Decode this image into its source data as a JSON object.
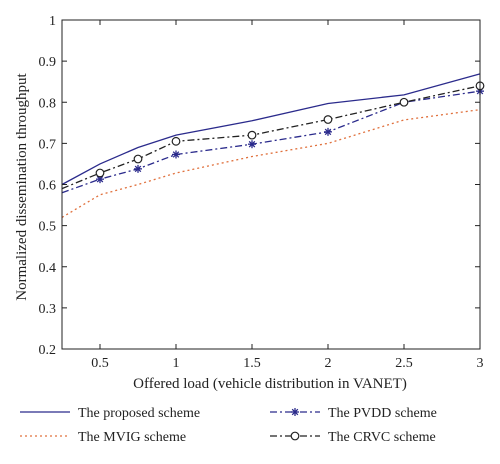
{
  "chart_data": {
    "type": "line",
    "title": "",
    "xlabel": "Offered load (vehicle distribution in VANET)",
    "ylabel": "Normalized dissemination throughput",
    "xlim": [
      0.25,
      3
    ],
    "ylim": [
      0.2,
      1
    ],
    "x_ticks": [
      "0.5",
      "1",
      "1.5",
      "2",
      "2.5",
      "3"
    ],
    "x_tick_values": [
      0.5,
      1,
      1.5,
      2,
      2.5,
      3
    ],
    "y_ticks": [
      "0.2",
      "0.3",
      "0.4",
      "0.5",
      "0.6",
      "0.7",
      "0.8",
      "0.9",
      "1"
    ],
    "y_tick_values": [
      0.2,
      0.3,
      0.4,
      0.5,
      0.6,
      0.7,
      0.8,
      0.9,
      1.0
    ],
    "grid": false,
    "legend_placement": "bottom",
    "series": [
      {
        "name": "The proposed scheme",
        "color": "#2b2b8c",
        "dash": "solid",
        "marker": "none",
        "x": [
          0.25,
          0.5,
          0.75,
          1,
          1.5,
          2,
          2.5,
          3
        ],
        "y": [
          0.6,
          0.65,
          0.69,
          0.72,
          0.755,
          0.797,
          0.818,
          0.869
        ],
        "marker_x": []
      },
      {
        "name": "The PVDD scheme",
        "color": "#2b2b8c",
        "dash": "dashdot",
        "marker": "star",
        "x": [
          0.25,
          0.5,
          0.75,
          1,
          1.5,
          2,
          2.5,
          3
        ],
        "y": [
          0.58,
          0.613,
          0.638,
          0.673,
          0.698,
          0.728,
          0.8,
          0.827
        ],
        "marker_x": [
          0.5,
          0.75,
          1,
          1.5,
          2,
          2.5,
          3
        ]
      },
      {
        "name": "The MVIG scheme",
        "color": "#e0703c",
        "dash": "dotted",
        "marker": "none",
        "x": [
          0.25,
          0.5,
          0.75,
          1,
          1.5,
          2,
          2.5,
          3
        ],
        "y": [
          0.52,
          0.575,
          0.6,
          0.628,
          0.668,
          0.7,
          0.757,
          0.782
        ],
        "marker_x": []
      },
      {
        "name": "The CRVC scheme",
        "color": "#222222",
        "dash": "dashdot",
        "marker": "circle",
        "x": [
          0.25,
          0.5,
          0.75,
          1,
          1.5,
          2,
          2.5,
          3
        ],
        "y": [
          0.59,
          0.628,
          0.662,
          0.705,
          0.72,
          0.758,
          0.8,
          0.84
        ],
        "marker_x": [
          0.5,
          0.75,
          1,
          1.5,
          2,
          2.5,
          3
        ]
      }
    ]
  }
}
